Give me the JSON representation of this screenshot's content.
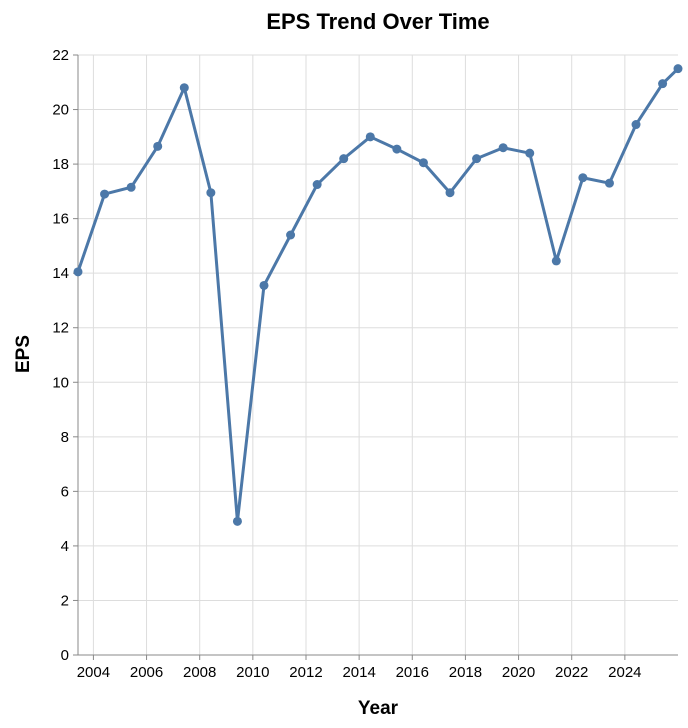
{
  "chart_data": {
    "type": "line",
    "title": "EPS Trend Over Time",
    "xlabel": "Year",
    "ylabel": "EPS",
    "xlim": [
      2003.42,
      2026.0
    ],
    "ylim": [
      0,
      22
    ],
    "x_ticks": [
      2004,
      2006,
      2008,
      2010,
      2012,
      2014,
      2016,
      2018,
      2020,
      2022,
      2024
    ],
    "y_ticks": [
      0,
      2,
      4,
      6,
      8,
      10,
      12,
      14,
      16,
      18,
      20,
      22
    ],
    "grid": true,
    "series": [
      {
        "color": "#4c78a8",
        "x": [
          2003.42,
          2004.42,
          2005.42,
          2006.42,
          2007.42,
          2008.42,
          2009.42,
          2010.42,
          2011.42,
          2012.42,
          2013.42,
          2014.42,
          2015.42,
          2016.42,
          2017.42,
          2018.42,
          2019.42,
          2020.42,
          2021.42,
          2022.42,
          2023.42,
          2024.42,
          2025.42,
          2026.0
        ],
        "values": [
          14.05,
          16.9,
          17.15,
          18.65,
          20.8,
          16.95,
          4.9,
          13.55,
          15.4,
          17.25,
          18.2,
          19.0,
          18.55,
          18.05,
          16.95,
          18.2,
          18.6,
          18.4,
          14.45,
          17.5,
          17.3,
          19.45,
          20.95,
          21.5
        ]
      }
    ]
  }
}
